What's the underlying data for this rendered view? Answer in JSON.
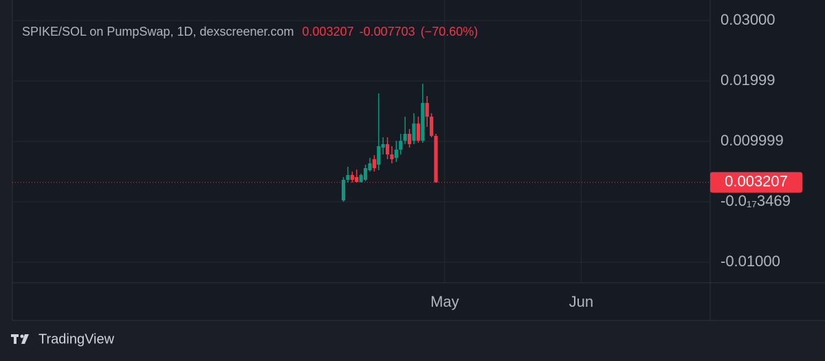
{
  "chart_data": {
    "type": "candlestick",
    "title": "SPIKE/SOL on PumpSwap, 1D, dexscreener.com",
    "last_price": 0.003207,
    "change": -0.007703,
    "change_percent": {
      "value": -70.6,
      "label": "(−70.60%)"
    },
    "x": [
      -23,
      -22,
      -21,
      -20,
      -19,
      -18,
      -17,
      -16,
      -15,
      -14,
      -13,
      -12,
      -11,
      -10,
      -9,
      -8,
      -7,
      -6,
      -5,
      -4,
      -3,
      -2
    ],
    "open": [
      0.000227,
      0.003636,
      0.004432,
      0.004091,
      0.003295,
      0.003636,
      0.005227,
      0.007045,
      0.006136,
      0.008977,
      0.009545,
      0.007841,
      0.007273,
      0.008636,
      0.01011,
      0.01125,
      0.01011,
      0.01295,
      0.01011,
      0.01636,
      0.01409,
      0.01091
    ],
    "high": [
      0.004091,
      0.005795,
      0.005,
      0.005341,
      0.004659,
      0.006136,
      0.007273,
      0.007727,
      0.01795,
      0.01068,
      0.01068,
      0.009205,
      0.01011,
      0.01125,
      0.01409,
      0.01205,
      0.01466,
      0.01409,
      0.01955,
      0.0175,
      0.01466,
      0.01125
    ],
    "low": [
      0,
      0.003182,
      0.003182,
      0.003182,
      0.003182,
      0.003409,
      0.005,
      0.005,
      0.005227,
      0.007841,
      0.007045,
      0.006364,
      0.006591,
      0.007841,
      0.009545,
      0.008977,
      0.009545,
      0.009773,
      0.009773,
      0.01239,
      0.01068,
      0.003182
    ],
    "close": [
      0.003636,
      0.004432,
      0.003636,
      0.003295,
      0.004432,
      0.005568,
      0.006364,
      0.005568,
      0.009205,
      0.009545,
      0.007841,
      0.007045,
      0.008636,
      0.01011,
      0.01125,
      0.009545,
      0.01295,
      0.01011,
      0.01636,
      0.01409,
      0.01091,
      0.003207
    ],
    "up_color": "#089981",
    "down_color": "#f23645",
    "xlim": [
      -98.2,
      60.3
    ],
    "xticks": [
      {
        "value": 0,
        "label": "May"
      },
      {
        "value": 31,
        "label": "Jun"
      }
    ],
    "ylim": [
      -0.01341,
      0.03341
    ],
    "yticks": [
      {
        "value": 0.03,
        "label": "0.03000"
      },
      0.01999,
      0.009999,
      {
        "value": -3.469e-18,
        "label": "-0.0₁₇3469"
      },
      {
        "value": -0.01,
        "label": "-0.01000"
      }
    ],
    "grid": true
  },
  "branding": "TradingView"
}
